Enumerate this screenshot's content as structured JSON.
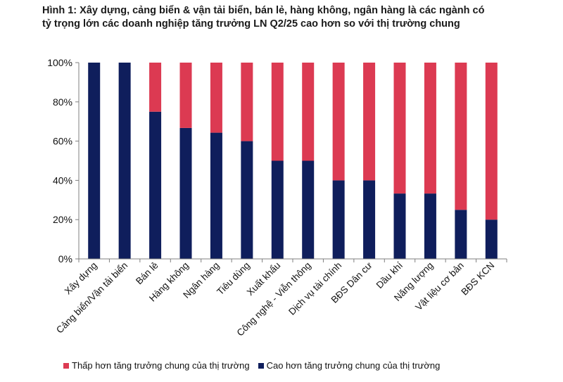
{
  "title_lines": [
    "Hình 1: Xây dựng, cảng biển & vận tải biển, bán lẻ, hàng không, ngân hàng là các ngành có",
    "tỷ trọng lớn các doanh nghiệp tăng trưởng LN Q2/25 cao hơn so với thị trường chung"
  ],
  "colors": {
    "lower": "#dc3a52",
    "higher": "#0f1e5c",
    "axis": "#7f7f7f"
  },
  "legend": [
    {
      "label": "Thấp  hơn tăng trưởng chung của thị trường",
      "color": "#dc3a52"
    },
    {
      "label": "Cao hơn tăng trưởng chung của thị trường",
      "color": "#0f1e5c"
    }
  ],
  "chart_data": {
    "type": "bar",
    "stacked": true,
    "title": "Hình 1: Xây dựng, cảng biển & vận tải biển, bán lẻ, hàng không, ngân hàng là các ngành có tỷ trọng lớn các doanh nghiệp tăng trưởng LN Q2/25 cao hơn so với thị trường chung",
    "xlabel": "",
    "ylabel": "",
    "ylim": [
      0,
      100
    ],
    "y_ticks": [
      "0%",
      "20%",
      "40%",
      "60%",
      "80%",
      "100%"
    ],
    "grid": false,
    "legend_position": "bottom",
    "categories": [
      "Xây dựng",
      "Cảng biển/Vận tải biển",
      "Bán lẻ",
      "Hàng không",
      "Ngân hàng",
      "Tiêu dùng",
      "Xuất khẩu",
      "Công nghệ - Viễn thông",
      "Dịch vụ tài chính",
      "BĐS Dân cư",
      "Dầu khí",
      "Năng lượng",
      "Vật liệu cơ bản",
      "BĐS KCN"
    ],
    "series": [
      {
        "name": "Cao hơn tăng trưởng chung của thị trường",
        "values": [
          100,
          100,
          75,
          66.7,
          64.3,
          60,
          50,
          50,
          40,
          40,
          33.3,
          33.3,
          25,
          20
        ]
      },
      {
        "name": "Thấp  hơn tăng trưởng chung của thị trường",
        "values": [
          0,
          0,
          25,
          33.3,
          35.7,
          40,
          50,
          50,
          60,
          60,
          66.7,
          66.7,
          75,
          80
        ]
      }
    ]
  }
}
